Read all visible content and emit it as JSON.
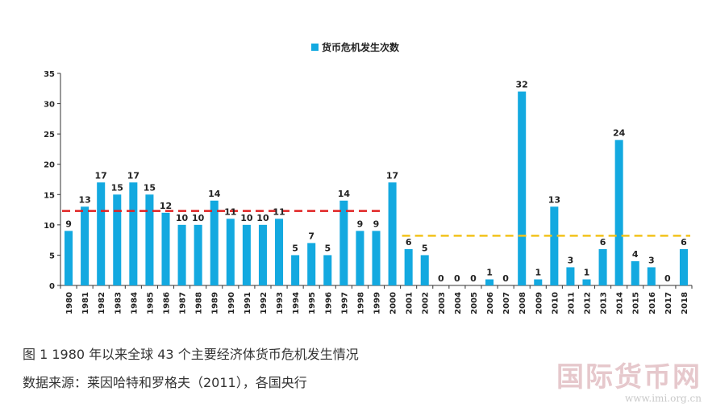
{
  "chart_data": {
    "type": "bar",
    "legend": "货币危机发生次数",
    "legend_position": "top-center",
    "categories": [
      "1980",
      "1981",
      "1982",
      "1983",
      "1984",
      "1985",
      "1986",
      "1987",
      "1988",
      "1989",
      "1990",
      "1991",
      "1992",
      "1993",
      "1994",
      "1995",
      "1996",
      "1997",
      "1998",
      "1999",
      "2000",
      "2001",
      "2002",
      "2003",
      "2004",
      "2005",
      "2006",
      "2007",
      "2008",
      "2009",
      "2010",
      "2011",
      "2012",
      "2013",
      "2014",
      "2015",
      "2016",
      "2017",
      "2018"
    ],
    "values": [
      9,
      13,
      17,
      15,
      17,
      15,
      12,
      10,
      10,
      14,
      11,
      10,
      10,
      11,
      5,
      7,
      5,
      14,
      9,
      9,
      17,
      6,
      5,
      0,
      0,
      0,
      1,
      0,
      32,
      1,
      13,
      3,
      1,
      6,
      24,
      4,
      3,
      0,
      6
    ],
    "ylim": [
      0,
      35
    ],
    "yticks": [
      0,
      5,
      10,
      15,
      20,
      25,
      30,
      35
    ],
    "bar_color": "#13a9e0",
    "grid": false,
    "reference_lines": [
      {
        "from": "1980",
        "to": "1999",
        "y": 12.3,
        "color": "#e02020",
        "style": "dashed"
      },
      {
        "from": "2001",
        "to": "2018",
        "y": 8.2,
        "color": "#f2c21b",
        "style": "dashed"
      }
    ]
  },
  "caption": {
    "figure": "图 1   1980 年以来全球 43 个主要经济体货币危机发生情况",
    "source": "数据来源：莱因哈特和罗格夫（2011），各国央行"
  },
  "watermark": {
    "logo": "国际货币网",
    "url": "www.imi.org.cn"
  }
}
